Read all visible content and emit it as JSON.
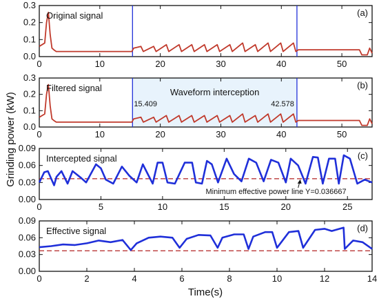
{
  "figure": {
    "ylabel": "Grinding power (kW)",
    "xlabel": "Time(s)"
  },
  "chart_data": [
    {
      "type": "line",
      "panel_label": "(a)",
      "annotation": "Original signal",
      "xlim": [
        0,
        55
      ],
      "ylim": [
        0,
        0.3
      ],
      "xticks": [
        0,
        10,
        20,
        30,
        40,
        50
      ],
      "yticks": [
        0.0,
        0.1,
        0.2,
        0.3
      ],
      "vlines": [
        15.409,
        42.578
      ],
      "series": [
        {
          "x": [
            0,
            0.9,
            1.2,
            1.5,
            1.8,
            2.1,
            2.4,
            2.8,
            5,
            10,
            15.3,
            15.6,
            16.8,
            17.2,
            18.9,
            19.3,
            21.0,
            21.4,
            23.1,
            23.5,
            25.2,
            25.6,
            27.3,
            27.7,
            29.4,
            29.8,
            31.5,
            31.9,
            33.6,
            34.0,
            35.7,
            36.1,
            37.8,
            38.2,
            39.9,
            40.3,
            42.0,
            42.4,
            42.8,
            48,
            52.9,
            53.3,
            54.2,
            54.6,
            55
          ],
          "y": [
            0.06,
            0.08,
            0.2,
            0.26,
            0.13,
            0.05,
            0.04,
            0.03,
            0.03,
            0.03,
            0.03,
            0.05,
            0.06,
            0.03,
            0.06,
            0.03,
            0.07,
            0.03,
            0.07,
            0.03,
            0.07,
            0.03,
            0.07,
            0.03,
            0.07,
            0.03,
            0.07,
            0.03,
            0.08,
            0.03,
            0.07,
            0.03,
            0.08,
            0.03,
            0.08,
            0.03,
            0.08,
            0.03,
            0.04,
            0.04,
            0.04,
            0.01,
            0.01,
            0.05,
            0.02
          ],
          "color": "#c0392b"
        }
      ]
    },
    {
      "type": "line",
      "panel_label": "(b)",
      "annotation": "Filtered signal",
      "title_in_plot": "Waveform interception",
      "interval_labels": [
        "15.409",
        "42.578"
      ],
      "xlim": [
        0,
        55
      ],
      "ylim": [
        0,
        0.3
      ],
      "xticks": [
        0,
        10,
        20,
        30,
        40,
        50
      ],
      "yticks": [
        0.0,
        0.1,
        0.2,
        0.3
      ],
      "vlines": [
        15.409,
        42.578
      ],
      "series": [
        {
          "x": [
            0,
            0.9,
            1.2,
            1.5,
            1.8,
            2.1,
            2.4,
            2.8,
            5,
            10,
            15.3,
            15.6,
            16.8,
            17.2,
            18.9,
            19.3,
            21.0,
            21.4,
            23.1,
            23.5,
            25.2,
            25.6,
            27.3,
            27.7,
            29.4,
            29.8,
            31.5,
            31.9,
            33.6,
            34.0,
            35.7,
            36.1,
            37.8,
            38.2,
            39.9,
            40.3,
            42.0,
            42.4,
            42.8,
            48,
            52.9,
            53.3,
            54.2,
            54.6,
            55
          ],
          "y": [
            0.06,
            0.08,
            0.2,
            0.26,
            0.13,
            0.05,
            0.04,
            0.03,
            0.03,
            0.03,
            0.03,
            0.05,
            0.06,
            0.03,
            0.06,
            0.03,
            0.07,
            0.03,
            0.07,
            0.03,
            0.07,
            0.03,
            0.07,
            0.03,
            0.07,
            0.03,
            0.07,
            0.03,
            0.08,
            0.03,
            0.07,
            0.03,
            0.08,
            0.03,
            0.08,
            0.03,
            0.08,
            0.03,
            0.04,
            0.04,
            0.04,
            0.01,
            0.01,
            0.05,
            0.02
          ],
          "color": "#c0392b"
        }
      ]
    },
    {
      "type": "line",
      "panel_label": "(c)",
      "annotation": "Intercepted signal",
      "hline": 0.036667,
      "hline_label": "Minimum effective power line Y=0.036667",
      "xlim": [
        0,
        27
      ],
      "ylim": [
        0,
        0.09
      ],
      "xticks": [
        0,
        5,
        10,
        15,
        20,
        25
      ],
      "yticks": [
        0.0,
        0.03,
        0.06,
        0.09
      ],
      "series": [
        {
          "x": [
            0,
            0.4,
            0.7,
            1.2,
            1.4,
            1.8,
            2.3,
            2.7,
            3.4,
            3.8,
            4.6,
            5.0,
            5.4,
            6.0,
            6.7,
            7.3,
            7.9,
            8.4,
            8.8,
            9.2,
            9.6,
            10.0,
            10.4,
            11.0,
            11.8,
            12.4,
            12.7,
            13.2,
            13.6,
            14.0,
            14.5,
            15.2,
            15.8,
            16.4,
            17.0,
            17.6,
            18.2,
            18.8,
            19.4,
            20.0,
            20.4,
            21.0,
            21.6,
            22.2,
            22.6,
            23.0,
            23.5,
            24.0,
            24.3,
            24.7,
            25.2,
            25.8,
            26.4,
            27.0
          ],
          "y": [
            0.03,
            0.048,
            0.05,
            0.025,
            0.04,
            0.05,
            0.028,
            0.05,
            0.038,
            0.03,
            0.062,
            0.055,
            0.035,
            0.028,
            0.058,
            0.042,
            0.03,
            0.062,
            0.045,
            0.028,
            0.065,
            0.065,
            0.03,
            0.028,
            0.065,
            0.065,
            0.03,
            0.028,
            0.068,
            0.062,
            0.03,
            0.072,
            0.045,
            0.032,
            0.072,
            0.065,
            0.032,
            0.07,
            0.065,
            0.03,
            0.072,
            0.06,
            0.028,
            0.075,
            0.074,
            0.028,
            0.072,
            0.072,
            0.028,
            0.078,
            0.072,
            0.028,
            0.035,
            0.03
          ],
          "color": "#1f2fd9"
        }
      ]
    },
    {
      "type": "line",
      "panel_label": "(d)",
      "annotation": "Effective signal",
      "hline": 0.036667,
      "xlim": [
        0,
        14
      ],
      "ylim": [
        0,
        0.09
      ],
      "xticks": [
        0,
        2,
        4,
        6,
        8,
        10,
        12,
        14
      ],
      "yticks": [
        0.0,
        0.03,
        0.06,
        0.09
      ],
      "series": [
        {
          "x": [
            0,
            0.5,
            1.0,
            1.5,
            2.0,
            2.5,
            3.0,
            3.5,
            3.85,
            4.1,
            4.6,
            5.1,
            5.6,
            5.9,
            6.2,
            6.7,
            7.2,
            7.5,
            7.7,
            8.2,
            8.6,
            8.8,
            9.0,
            9.5,
            9.8,
            10.0,
            10.5,
            10.9,
            11.1,
            11.6,
            12.0,
            12.3,
            12.8,
            12.85,
            13.2,
            13.6,
            14.0
          ],
          "y": [
            0.043,
            0.045,
            0.048,
            0.047,
            0.05,
            0.055,
            0.052,
            0.056,
            0.038,
            0.05,
            0.06,
            0.062,
            0.06,
            0.042,
            0.058,
            0.065,
            0.064,
            0.042,
            0.06,
            0.066,
            0.066,
            0.04,
            0.062,
            0.07,
            0.07,
            0.042,
            0.07,
            0.072,
            0.042,
            0.074,
            0.076,
            0.072,
            0.078,
            0.04,
            0.055,
            0.052,
            0.04
          ],
          "color": "#1f2fd9"
        }
      ]
    }
  ]
}
